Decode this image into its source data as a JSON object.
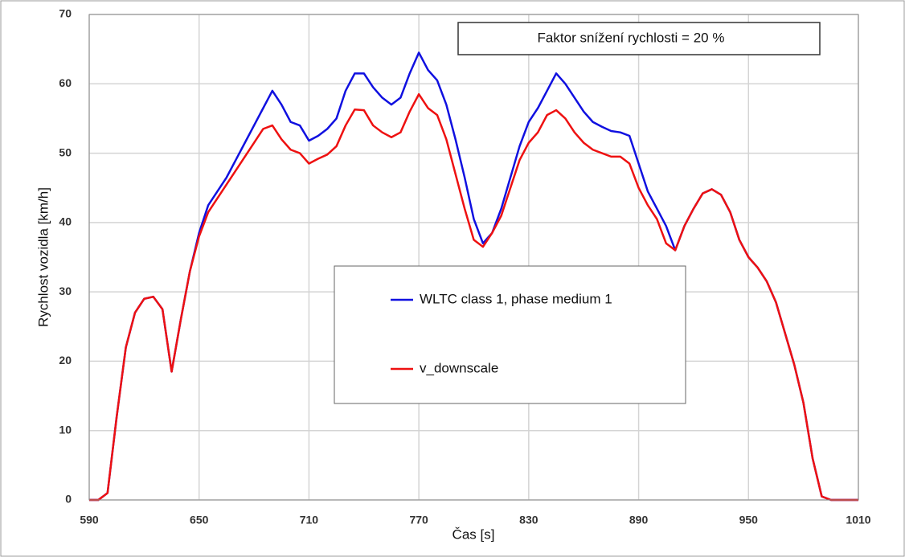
{
  "chart_data": {
    "type": "line",
    "annotation": "Faktor snížení rychlosti = 20 %",
    "x_label": "Čas [s]",
    "y_label": "Rychlost vozidla [km/h]",
    "x": [
      590,
      595,
      600,
      605,
      610,
      615,
      620,
      625,
      630,
      635,
      640,
      645,
      650,
      655,
      660,
      665,
      670,
      675,
      680,
      685,
      690,
      695,
      700,
      705,
      710,
      715,
      720,
      725,
      730,
      735,
      740,
      745,
      750,
      755,
      760,
      765,
      770,
      775,
      780,
      785,
      790,
      795,
      800,
      805,
      810,
      815,
      820,
      825,
      830,
      835,
      840,
      845,
      850,
      855,
      860,
      865,
      870,
      875,
      880,
      885,
      890,
      895,
      900,
      905,
      910,
      915,
      920,
      925,
      930,
      935,
      940,
      945,
      950,
      955,
      960,
      965,
      970,
      975,
      980,
      985,
      990,
      995,
      1000,
      1005,
      1010
    ],
    "series": [
      {
        "name": "WLTC class 1, phase medium 1",
        "color": "#1010e0",
        "values": [
          0,
          0,
          1,
          12,
          22,
          27,
          29,
          29.3,
          27.5,
          18.5,
          26,
          33,
          38.5,
          42.5,
          44.5,
          46.5,
          49,
          51.5,
          54,
          56.5,
          59,
          57,
          54.5,
          54,
          51.8,
          52.5,
          53.5,
          55,
          59,
          61.5,
          61.5,
          59.5,
          58,
          57,
          58,
          61.5,
          64.5,
          62,
          60.5,
          57,
          52,
          46.5,
          40.5,
          37,
          38.5,
          42,
          46.5,
          51,
          54.5,
          56.5,
          59,
          61.5,
          60,
          58,
          56,
          54.5,
          53.8,
          53.2,
          53,
          52.5,
          48.5,
          44.5,
          42,
          39.5,
          36,
          39.5,
          42,
          44.2,
          44.8,
          44,
          41.5,
          37.5,
          35,
          33.5,
          31.5,
          28.5,
          24,
          19.5,
          14,
          6,
          0.5,
          0,
          0,
          0,
          0
        ]
      },
      {
        "name": "v_downscale",
        "color": "#ee1111",
        "values": [
          0,
          0,
          1,
          12,
          22,
          27,
          29,
          29.3,
          27.5,
          18.5,
          26,
          33,
          38,
          41.5,
          43.5,
          45.5,
          47.5,
          49.5,
          51.5,
          53.5,
          54,
          52,
          50.5,
          50,
          48.5,
          49.2,
          49.8,
          51,
          54,
          56.3,
          56.2,
          54,
          53,
          52.3,
          53,
          56,
          58.5,
          56.5,
          55.5,
          52,
          47,
          42,
          37.5,
          36.5,
          38.5,
          41,
          45,
          49,
          51.5,
          53,
          55.5,
          56.2,
          55,
          53,
          51.5,
          50.5,
          50,
          49.5,
          49.5,
          48.5,
          45,
          42.5,
          40.5,
          37,
          36,
          39.5,
          42,
          44.2,
          44.8,
          44,
          41.5,
          37.5,
          35,
          33.5,
          31.5,
          28.5,
          24,
          19.5,
          14,
          6,
          0.5,
          0,
          0,
          0,
          0
        ]
      }
    ],
    "xlim": [
      590,
      1010
    ],
    "xticks": [
      590,
      650,
      710,
      770,
      830,
      890,
      950,
      1010
    ],
    "ylim": [
      0,
      70
    ],
    "yticks": [
      0,
      10,
      20,
      30,
      40,
      50,
      60,
      70
    ],
    "grid": true
  }
}
